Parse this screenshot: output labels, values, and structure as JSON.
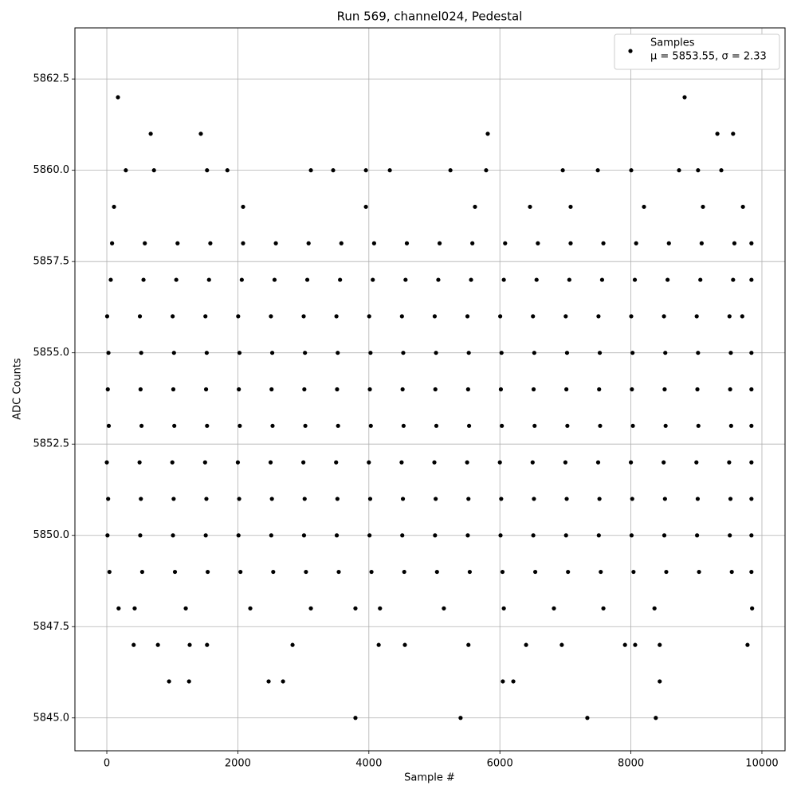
{
  "chart_data": {
    "type": "scatter",
    "title": "Run 569, channel024, Pedestal",
    "x_label": "Sample #",
    "y_label": "ADC Counts",
    "legend_note": "μ = 5853.55, σ = 2.33",
    "legend_position": "upper right",
    "grid": true,
    "xlim": [
      -487,
      10353
    ],
    "ylim": [
      5844.1,
      5863.9
    ],
    "xticks": [
      0,
      2000,
      4000,
      6000,
      8000,
      10000
    ],
    "yticks": [
      {
        "value": 5845,
        "label": "5845.0"
      },
      5847.5,
      {
        "value": 5850,
        "label": "5850.0"
      },
      5852.5,
      {
        "value": 5855,
        "label": "5855.0"
      },
      5857.5,
      {
        "value": 5860,
        "label": "5860.0"
      },
      5862.5
    ],
    "series": [
      {
        "name": "Samples",
        "color": "#000000",
        "x": [
          40,
          540,
          1040,
          1540,
          2040,
          2540,
          3040,
          3540,
          4040,
          4540,
          5040,
          5540,
          6040,
          6540,
          7040,
          7540,
          8040,
          8540,
          9040,
          9540,
          9840,
          10,
          510,
          1010,
          1510,
          2010,
          2510,
          3010,
          3510,
          4010,
          4510,
          5010,
          5510,
          6010,
          6510,
          7010,
          7510,
          8010,
          8510,
          9010,
          9510,
          9840,
          20,
          520,
          1020,
          1520,
          2020,
          2520,
          3020,
          3520,
          4020,
          4520,
          5020,
          5520,
          6020,
          6520,
          7020,
          7520,
          8020,
          8520,
          9020,
          9520,
          9840,
          0,
          500,
          1000,
          1500,
          2000,
          2500,
          3000,
          3500,
          4000,
          4500,
          5000,
          5500,
          6000,
          6500,
          7000,
          7500,
          8000,
          8500,
          9000,
          9500,
          9840,
          30,
          530,
          1030,
          1530,
          2030,
          2530,
          3030,
          3530,
          4030,
          4530,
          5030,
          5530,
          6030,
          6530,
          7030,
          7530,
          8030,
          8530,
          9030,
          9530,
          9840,
          15,
          515,
          1015,
          1515,
          2015,
          2515,
          3015,
          3515,
          4015,
          4515,
          5015,
          5515,
          6015,
          6515,
          7015,
          7515,
          8015,
          8515,
          9015,
          9515,
          9840,
          25,
          525,
          1025,
          1525,
          2025,
          2525,
          3025,
          3525,
          4025,
          4525,
          5025,
          5525,
          6025,
          6525,
          7025,
          7525,
          8025,
          8525,
          9025,
          9525,
          9840,
          5,
          505,
          1005,
          1505,
          2005,
          2505,
          3005,
          3505,
          4005,
          4505,
          5005,
          5505,
          6005,
          6505,
          7005,
          7505,
          8005,
          8505,
          9005,
          9505,
          9700,
          60,
          560,
          1060,
          1560,
          2060,
          2560,
          3060,
          3560,
          4060,
          4560,
          5060,
          5560,
          6060,
          6560,
          7060,
          7560,
          8060,
          8560,
          9060,
          9560,
          9840,
          80,
          580,
          1080,
          1580,
          2080,
          2580,
          3080,
          3580,
          4080,
          4580,
          5080,
          5580,
          6080,
          6580,
          7080,
          7580,
          8080,
          8580,
          9080,
          9580,
          9840,
          170,
          8820,
          670,
          1435,
          5815,
          9320,
          9560,
          290,
          720,
          1530,
          1840,
          3115,
          3455,
          3955,
          4320,
          5245,
          5790,
          6960,
          7495,
          8005,
          8735,
          9025,
          9380,
          110,
          2080,
          3955,
          5620,
          6460,
          7080,
          8200,
          9100,
          9710,
          180,
          425,
          1205,
          2190,
          3115,
          3795,
          4170,
          5145,
          6060,
          6825,
          7580,
          8360,
          9850,
          410,
          780,
          1265,
          1530,
          2835,
          4150,
          4550,
          5520,
          6400,
          6945,
          7910,
          8065,
          8440,
          9780,
          950,
          1255,
          2470,
          2690,
          6045,
          6205,
          8440,
          3795,
          5400,
          7335,
          8380
        ],
        "values": [
          5849,
          5849,
          5849,
          5849,
          5849,
          5849,
          5849,
          5849,
          5849,
          5849,
          5849,
          5849,
          5849,
          5849,
          5849,
          5849,
          5849,
          5849,
          5849,
          5849,
          5849,
          5850,
          5850,
          5850,
          5850,
          5850,
          5850,
          5850,
          5850,
          5850,
          5850,
          5850,
          5850,
          5850,
          5850,
          5850,
          5850,
          5850,
          5850,
          5850,
          5850,
          5850,
          5851,
          5851,
          5851,
          5851,
          5851,
          5851,
          5851,
          5851,
          5851,
          5851,
          5851,
          5851,
          5851,
          5851,
          5851,
          5851,
          5851,
          5851,
          5851,
          5851,
          5851,
          5852,
          5852,
          5852,
          5852,
          5852,
          5852,
          5852,
          5852,
          5852,
          5852,
          5852,
          5852,
          5852,
          5852,
          5852,
          5852,
          5852,
          5852,
          5852,
          5852,
          5852,
          5853,
          5853,
          5853,
          5853,
          5853,
          5853,
          5853,
          5853,
          5853,
          5853,
          5853,
          5853,
          5853,
          5853,
          5853,
          5853,
          5853,
          5853,
          5853,
          5853,
          5853,
          5854,
          5854,
          5854,
          5854,
          5854,
          5854,
          5854,
          5854,
          5854,
          5854,
          5854,
          5854,
          5854,
          5854,
          5854,
          5854,
          5854,
          5854,
          5854,
          5854,
          5854,
          5855,
          5855,
          5855,
          5855,
          5855,
          5855,
          5855,
          5855,
          5855,
          5855,
          5855,
          5855,
          5855,
          5855,
          5855,
          5855,
          5855,
          5855,
          5855,
          5855,
          5855,
          5856,
          5856,
          5856,
          5856,
          5856,
          5856,
          5856,
          5856,
          5856,
          5856,
          5856,
          5856,
          5856,
          5856,
          5856,
          5856,
          5856,
          5856,
          5856,
          5856,
          5856,
          5857,
          5857,
          5857,
          5857,
          5857,
          5857,
          5857,
          5857,
          5857,
          5857,
          5857,
          5857,
          5857,
          5857,
          5857,
          5857,
          5857,
          5857,
          5857,
          5857,
          5857,
          5858,
          5858,
          5858,
          5858,
          5858,
          5858,
          5858,
          5858,
          5858,
          5858,
          5858,
          5858,
          5858,
          5858,
          5858,
          5858,
          5858,
          5858,
          5858,
          5858,
          5858,
          5862,
          5862,
          5861,
          5861,
          5861,
          5861,
          5861,
          5860,
          5860,
          5860,
          5860,
          5860,
          5860,
          5860,
          5860,
          5860,
          5860,
          5860,
          5860,
          5860,
          5860,
          5860,
          5860,
          5859,
          5859,
          5859,
          5859,
          5859,
          5859,
          5859,
          5859,
          5859,
          5848,
          5848,
          5848,
          5848,
          5848,
          5848,
          5848,
          5848,
          5848,
          5848,
          5848,
          5848,
          5848,
          5847,
          5847,
          5847,
          5847,
          5847,
          5847,
          5847,
          5847,
          5847,
          5847,
          5847,
          5847,
          5847,
          5847,
          5846,
          5846,
          5846,
          5846,
          5846,
          5846,
          5846,
          5845,
          5845,
          5845,
          5845
        ]
      }
    ]
  }
}
